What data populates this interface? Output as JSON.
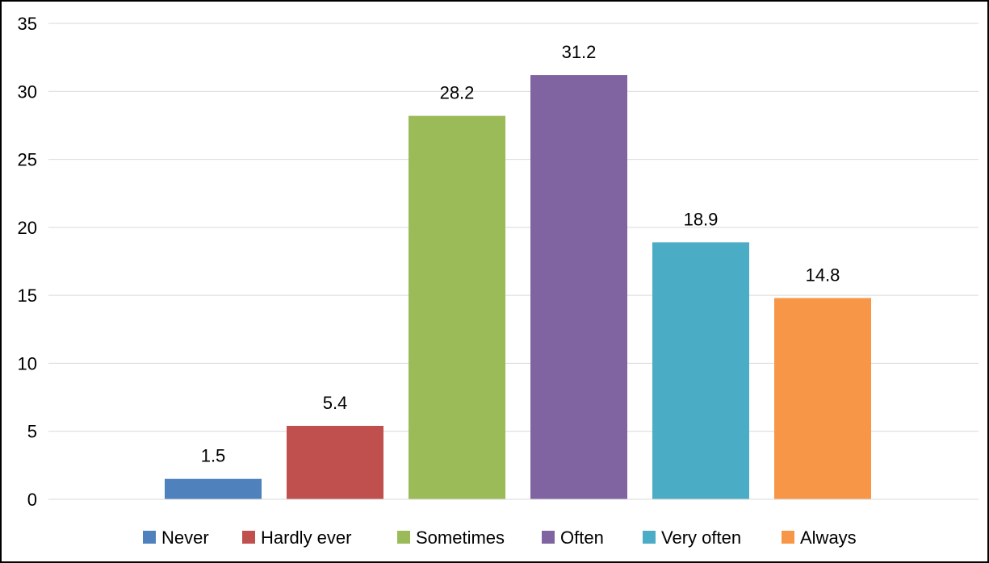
{
  "chart_data": {
    "type": "bar",
    "categories": [
      "Never",
      "Hardly ever",
      "Sometimes",
      "Often",
      "Very often",
      "Always"
    ],
    "values": [
      1.5,
      5.4,
      28.2,
      31.2,
      18.9,
      14.8
    ],
    "data_labels": [
      "1.5",
      "5.4",
      "28.2",
      "31.2",
      "18.9",
      "14.8"
    ],
    "colors": [
      "#4F81BD",
      "#C0504D",
      "#9BBB59",
      "#8064A2",
      "#4BACC6",
      "#F79646"
    ],
    "title": "",
    "xlabel": "",
    "ylabel": "",
    "ylim": [
      0,
      35
    ],
    "yticks": [
      0,
      5,
      10,
      15,
      20,
      25,
      30,
      35
    ],
    "grid": true,
    "legend_position": "bottom"
  }
}
